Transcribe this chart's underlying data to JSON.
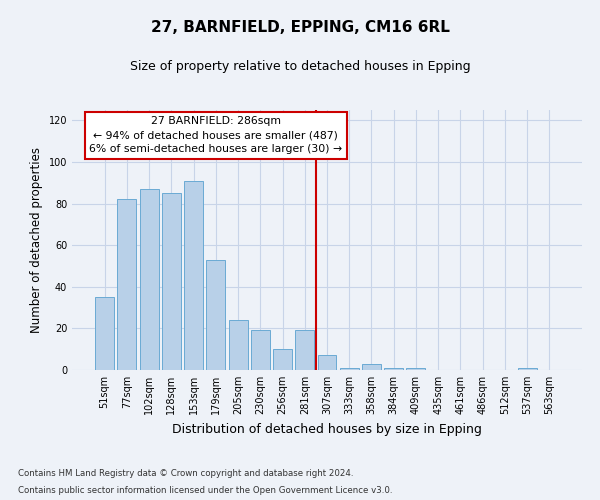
{
  "title": "27, BARNFIELD, EPPING, CM16 6RL",
  "subtitle": "Size of property relative to detached houses in Epping",
  "xlabel": "Distribution of detached houses by size in Epping",
  "ylabel": "Number of detached properties",
  "categories": [
    "51sqm",
    "77sqm",
    "102sqm",
    "128sqm",
    "153sqm",
    "179sqm",
    "205sqm",
    "230sqm",
    "256sqm",
    "281sqm",
    "307sqm",
    "333sqm",
    "358sqm",
    "384sqm",
    "409sqm",
    "435sqm",
    "461sqm",
    "486sqm",
    "512sqm",
    "537sqm",
    "563sqm"
  ],
  "values": [
    35,
    82,
    87,
    85,
    91,
    53,
    24,
    19,
    10,
    19,
    7,
    1,
    3,
    1,
    1,
    0,
    0,
    0,
    0,
    1,
    0
  ],
  "bar_color": "#b8d0e8",
  "bar_edge_color": "#6aaad4",
  "grid_color": "#c8d4e8",
  "background_color": "#eef2f8",
  "marker_label": "27 BARNFIELD: 286sqm",
  "annotation_line1": "← 94% of detached houses are smaller (487)",
  "annotation_line2": "6% of semi-detached houses are larger (30) →",
  "annotation_box_color": "#ffffff",
  "annotation_border_color": "#cc0000",
  "marker_line_color": "#cc0000",
  "ylim": [
    0,
    125
  ],
  "yticks": [
    0,
    20,
    40,
    60,
    80,
    100,
    120
  ],
  "footnote1": "Contains HM Land Registry data © Crown copyright and database right 2024.",
  "footnote2": "Contains public sector information licensed under the Open Government Licence v3.0."
}
